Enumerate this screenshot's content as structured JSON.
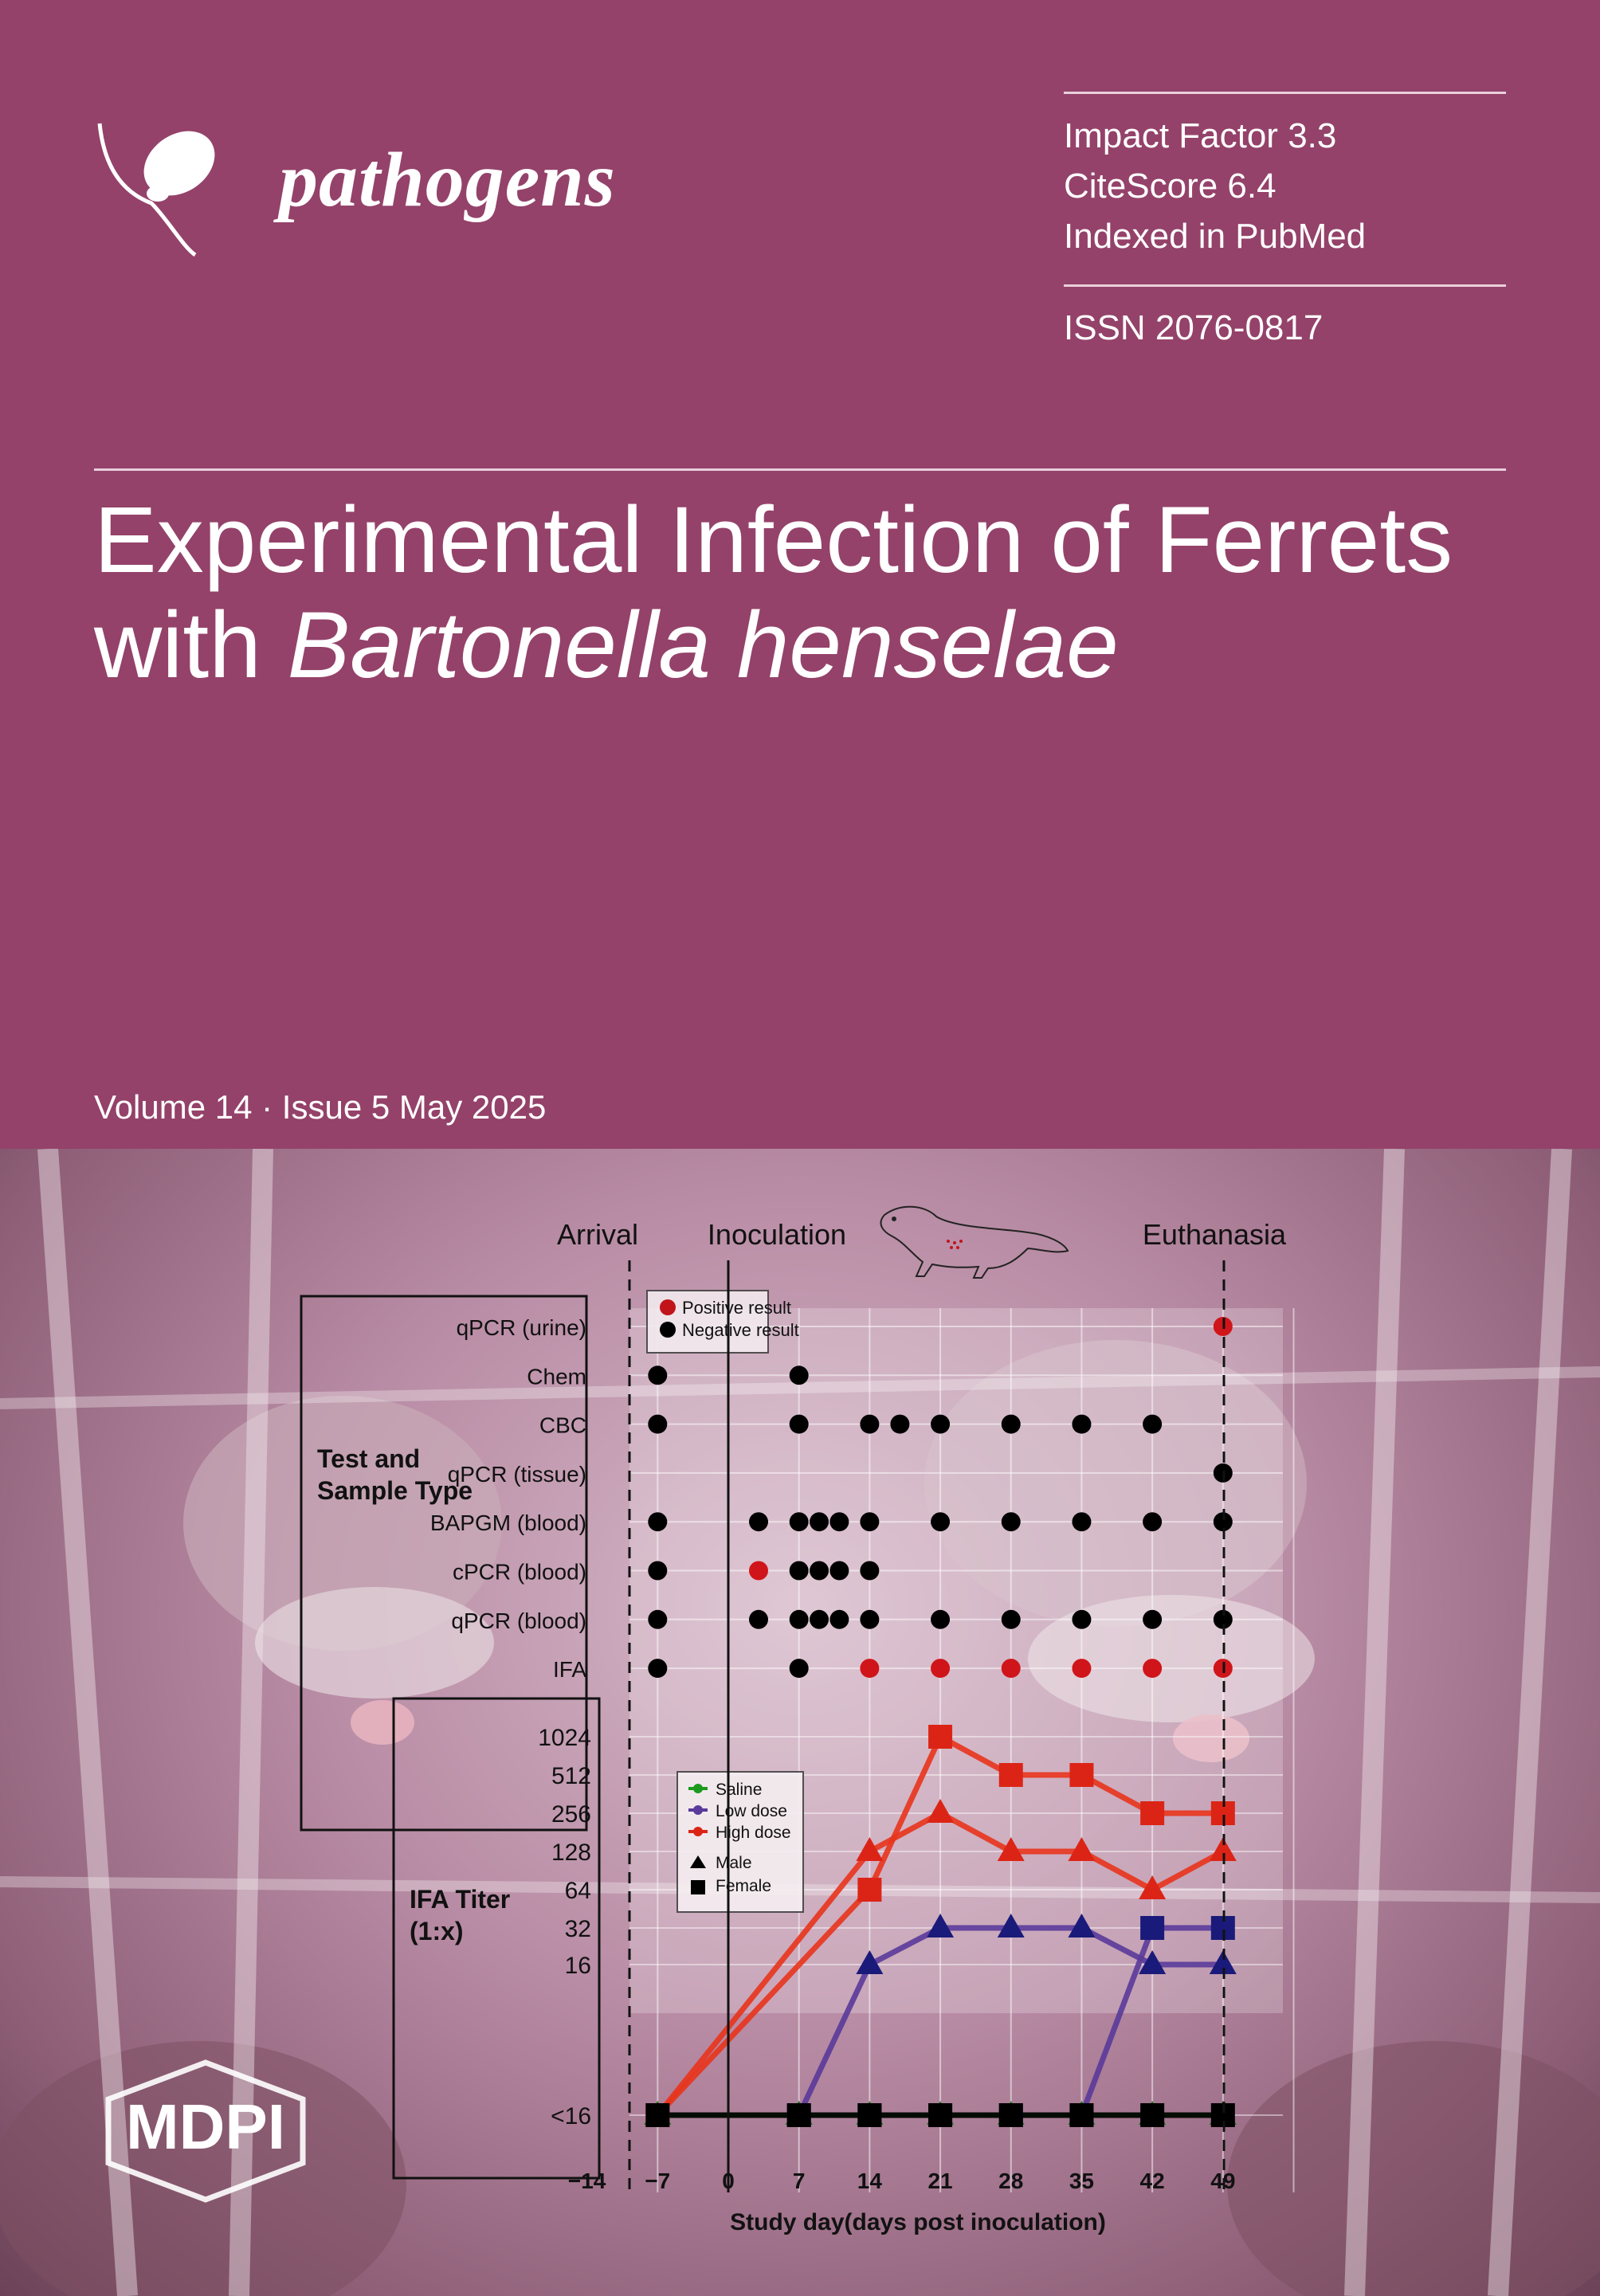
{
  "journal": {
    "name": "pathogens"
  },
  "metrics": {
    "impact_factor": "Impact Factor 3.3",
    "citescore": "CiteScore 6.4",
    "indexed": "Indexed in PubMed",
    "issn": "ISSN 2076-0817"
  },
  "article": {
    "title_line1": "Experimental Infection of Ferrets",
    "title_line2_prefix": "with ",
    "title_line2_italic": "Bartonella henselae"
  },
  "issue": {
    "volume_text": "Volume 14 · Issue 5 May 2025"
  },
  "publisher": {
    "name": "MDPI"
  },
  "colors": {
    "cover_bg": "#94426a",
    "red": "#d0151a",
    "navy": "#1a1a7a",
    "green": "#1c7a1c",
    "purple": "#5a3a9a"
  },
  "chart_data": [
    {
      "type": "scatter",
      "events": [
        "Arrival",
        "Inoculation",
        "Euthanasia"
      ],
      "group_label": "Test and Sample Type",
      "legend": [
        {
          "name": "Positive result",
          "color": "#c0141a"
        },
        {
          "name": "Negative result",
          "color": "#000000"
        }
      ],
      "rows": [
        {
          "label": "qPCR (urine)",
          "days": [
            49
          ],
          "positive": [
            49
          ]
        },
        {
          "label": "Chem",
          "days": [
            -7,
            7
          ],
          "positive": []
        },
        {
          "label": "CBC",
          "days": [
            -7,
            7,
            14,
            17,
            21,
            28,
            35,
            42
          ],
          "positive": []
        },
        {
          "label": "qPCR (tissue)",
          "days": [
            49
          ],
          "positive": []
        },
        {
          "label": "BAPGM (blood)",
          "days": [
            -7,
            3,
            7,
            9,
            11,
            14,
            21,
            28,
            35,
            42,
            49
          ],
          "positive": []
        },
        {
          "label": "cPCR (blood)",
          "days": [
            -7,
            3,
            7,
            9,
            11,
            14
          ],
          "positive": [
            3
          ]
        },
        {
          "label": "qPCR (blood)",
          "days": [
            -7,
            3,
            7,
            9,
            11,
            14,
            21,
            28,
            35,
            42,
            49
          ],
          "positive": []
        },
        {
          "label": "IFA",
          "days": [
            -7,
            7,
            14,
            21,
            28,
            35,
            42,
            49
          ],
          "positive": [
            14,
            21,
            28,
            35,
            42,
            49
          ]
        }
      ]
    },
    {
      "type": "line",
      "ylabel": "IFA Titer (1:x)",
      "xlabel": "Study day(days post inoculation)",
      "x_ticks": [
        "−14",
        "−7",
        "0",
        "7",
        "14",
        "21",
        "28",
        "35",
        "42",
        "49"
      ],
      "y_ticks": [
        "1024",
        "512",
        "256",
        "128",
        "64",
        "32",
        "16",
        "<16"
      ],
      "legend": [
        "Saline",
        "Low dose",
        "High dose",
        "Male",
        "Female"
      ],
      "series": [
        {
          "name": "High dose",
          "sex": "Female",
          "color": "#dc2416",
          "x": [
            -7,
            14,
            21,
            28,
            35,
            42,
            49
          ],
          "y": [
            16,
            64,
            1024,
            512,
            512,
            256,
            256
          ]
        },
        {
          "name": "High dose",
          "sex": "Male",
          "color": "#dc2416",
          "x": [
            -7,
            14,
            21,
            28,
            35,
            42,
            49
          ],
          "y": [
            16,
            128,
            256,
            128,
            128,
            64,
            128
          ]
        },
        {
          "name": "Low dose",
          "sex": "Male",
          "color": "#1a1a7a",
          "x": [
            7,
            14,
            21,
            28,
            35,
            42,
            49
          ],
          "y": [
            16,
            16,
            32,
            32,
            32,
            16,
            16
          ]
        },
        {
          "name": "Low dose",
          "sex": "Female",
          "color": "#1a1a7a",
          "x": [
            7,
            14,
            21,
            28,
            35,
            42,
            49
          ],
          "y": [
            16,
            16,
            16,
            16,
            16,
            32,
            32
          ]
        },
        {
          "name": "Saline",
          "sex": "Male",
          "color": "#1c7a1c",
          "x": [
            -7,
            7,
            14,
            21,
            28,
            35,
            42,
            49
          ],
          "y": [
            16,
            16,
            16,
            16,
            16,
            16,
            16,
            16
          ]
        },
        {
          "name": "Saline",
          "sex": "Female",
          "color": "#000000",
          "x": [
            -7,
            7,
            14,
            21,
            28,
            35,
            42,
            49
          ],
          "y": [
            16,
            16,
            16,
            16,
            16,
            16,
            16,
            16
          ]
        }
      ]
    }
  ]
}
